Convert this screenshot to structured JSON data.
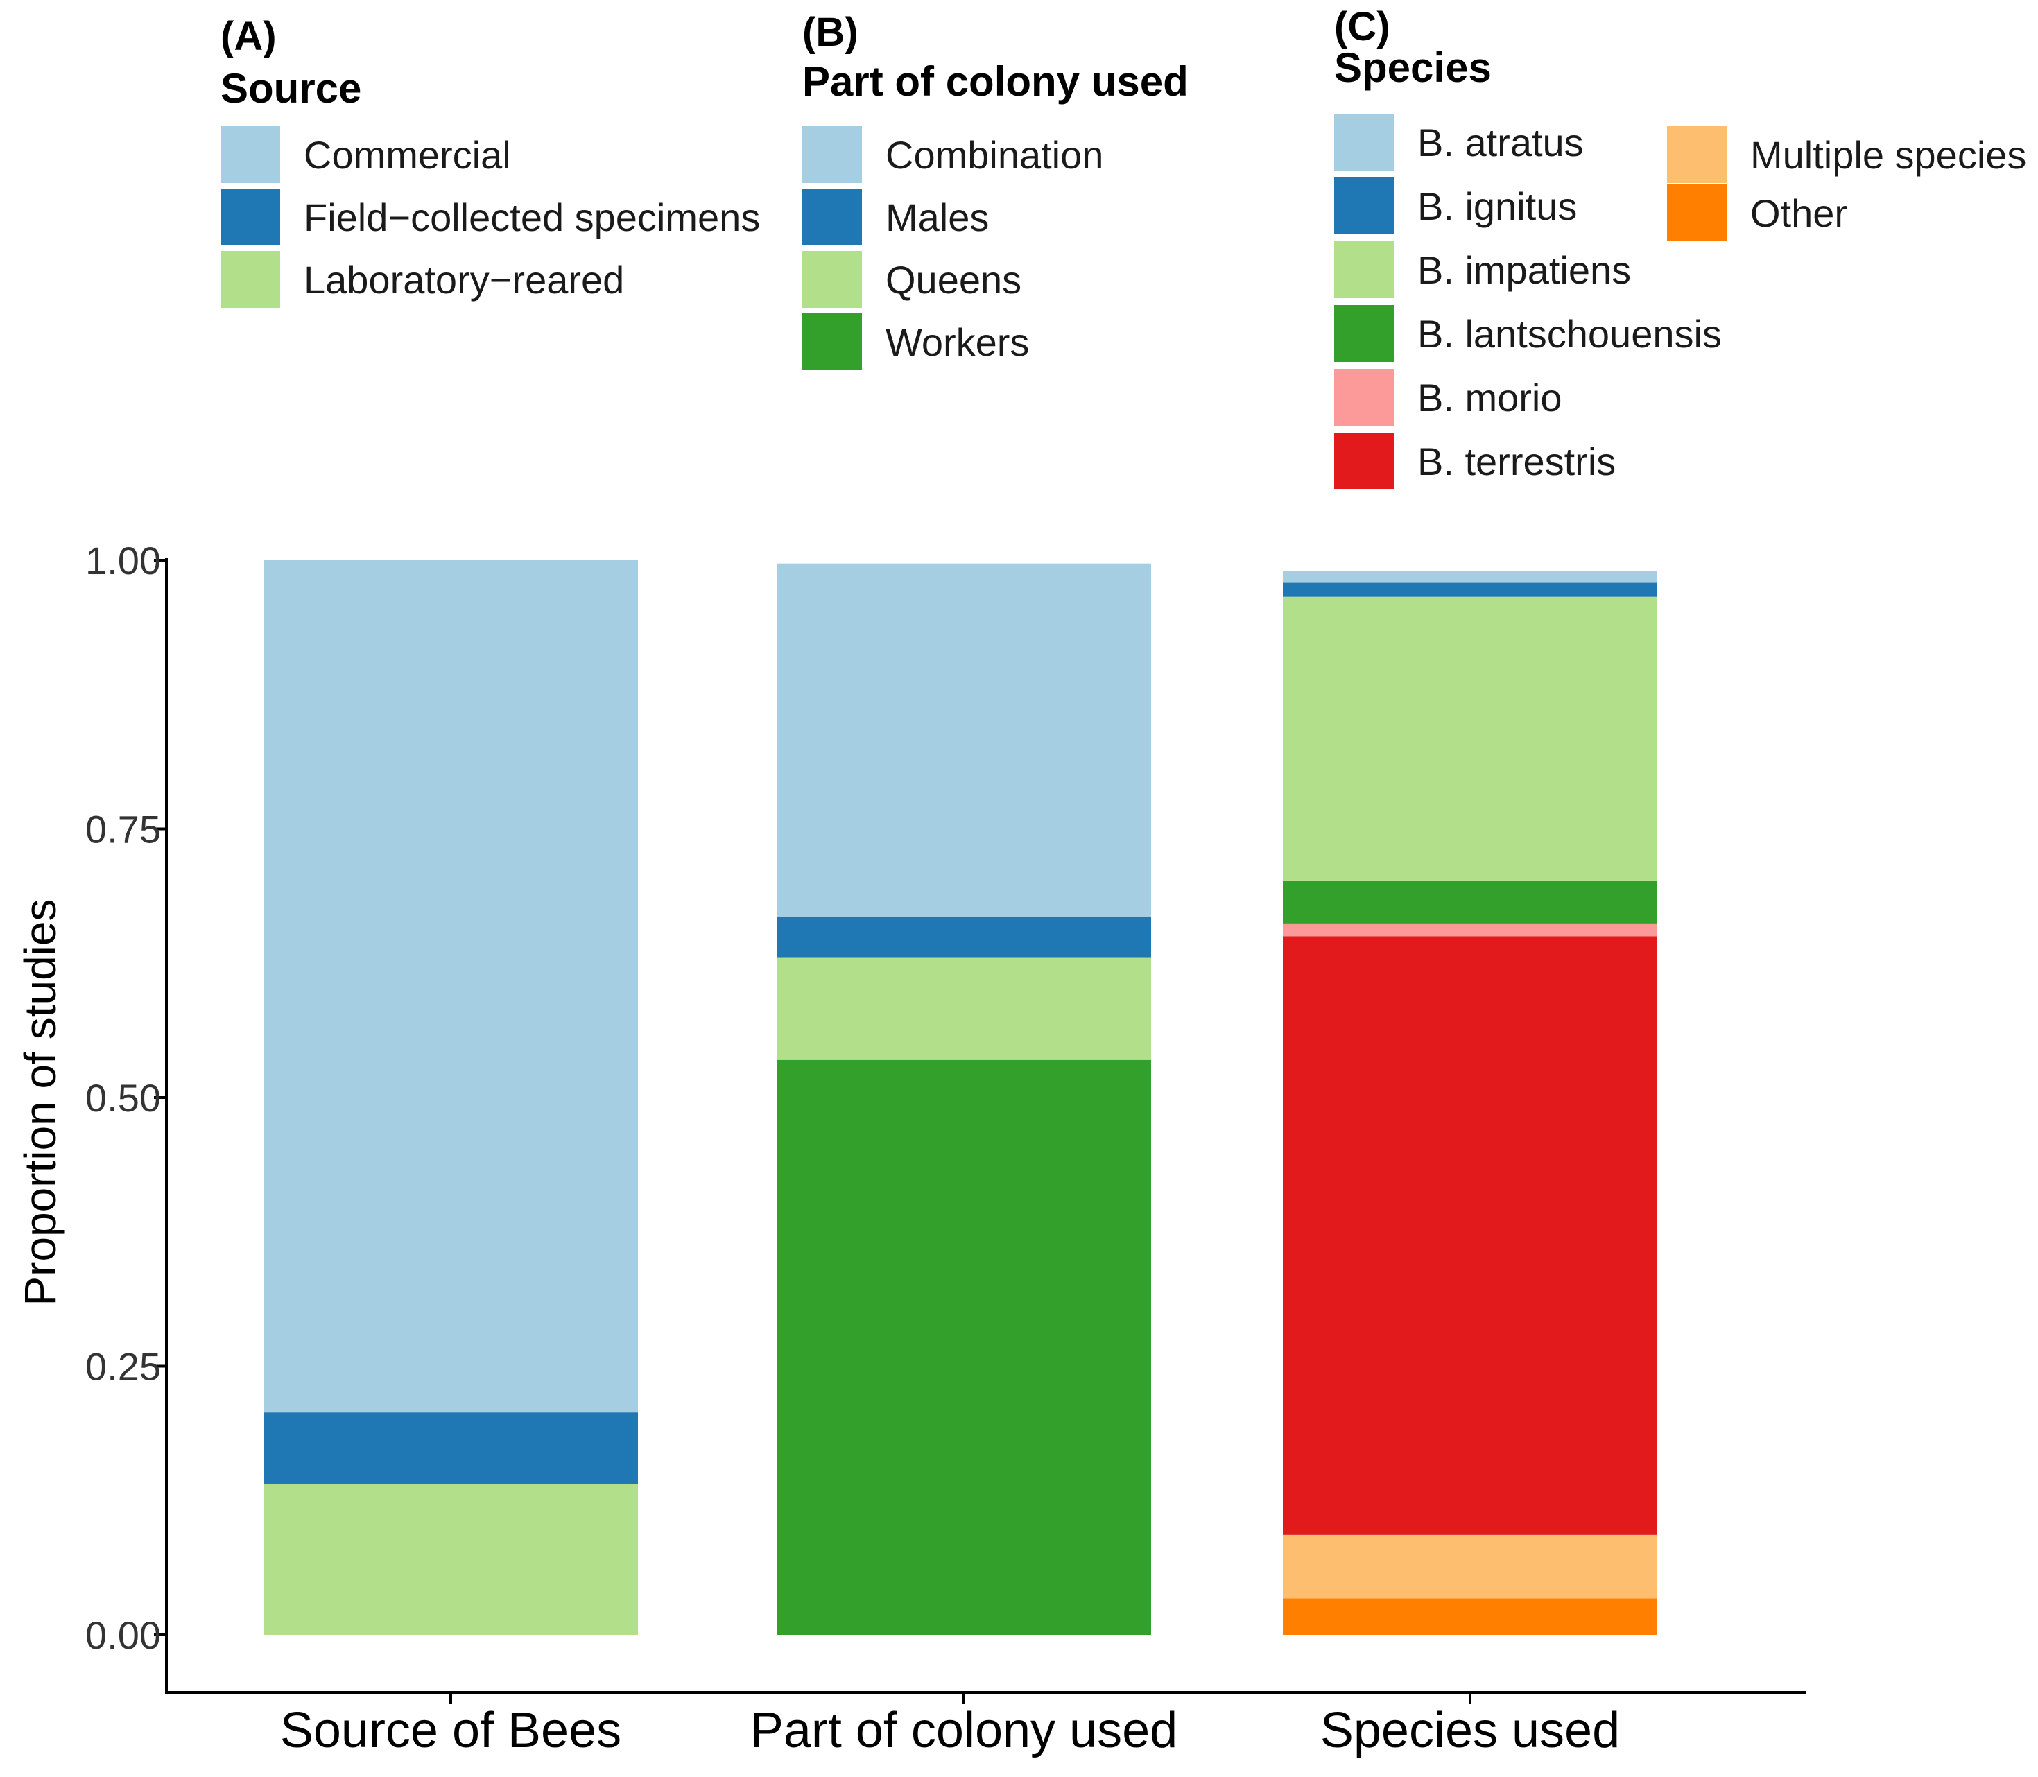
{
  "chart_data": {
    "type": "bar",
    "stacked": true,
    "ylabel": "Proportion of studies",
    "xlabel": "",
    "ylim": [
      0,
      1
    ],
    "yticks": [
      0.0,
      0.25,
      0.5,
      0.75,
      1.0
    ],
    "ytick_labels": [
      "0.00",
      "0.25",
      "0.50",
      "0.75",
      "1.00"
    ],
    "categories": [
      "Source of Bees",
      "Part of colony used",
      "Species used"
    ],
    "stacks": [
      {
        "category": "Source of Bees",
        "segments": [
          {
            "label": "Laboratory−reared",
            "value": 0.14,
            "color": "#b2df8a"
          },
          {
            "label": "Field−collected specimens",
            "value": 0.067,
            "color": "#1f78b4"
          },
          {
            "label": "Commercial",
            "value": 0.793,
            "color": "#a6cee3"
          }
        ]
      },
      {
        "category": "Part of colony used",
        "segments": [
          {
            "label": "Workers",
            "value": 0.535,
            "color": "#33a02c"
          },
          {
            "label": "Queens",
            "value": 0.095,
            "color": "#b2df8a"
          },
          {
            "label": "Males",
            "value": 0.038,
            "color": "#1f78b4"
          },
          {
            "label": "Combination",
            "value": 0.329,
            "color": "#a6cee3"
          }
        ]
      },
      {
        "category": "Species used",
        "segments": [
          {
            "label": "Other",
            "value": 0.034,
            "color": "#ff7f00"
          },
          {
            "label": "Multiple species",
            "value": 0.059,
            "color": "#fdbf6f"
          },
          {
            "label": "B. terrestris",
            "value": 0.557,
            "color": "#e31a1c"
          },
          {
            "label": "B. morio",
            "value": 0.012,
            "color": "#fb9a99"
          },
          {
            "label": "B. lantschouensis",
            "value": 0.04,
            "color": "#33a02c"
          },
          {
            "label": "B. impatiens",
            "value": 0.264,
            "color": "#b2df8a"
          },
          {
            "label": "B. ignitus",
            "value": 0.013,
            "color": "#1f78b4"
          },
          {
            "label": "B. atratus",
            "value": 0.011,
            "color": "#a6cee3"
          }
        ]
      }
    ],
    "legends": [
      {
        "panel": "(A)",
        "title": "Source",
        "columns": [
          [
            {
              "label": "Commercial",
              "color": "#a6cee3"
            },
            {
              "label": "Field−collected specimens",
              "color": "#1f78b4"
            },
            {
              "label": "Laboratory−reared",
              "color": "#b2df8a"
            }
          ]
        ]
      },
      {
        "panel": "(B)",
        "title": "Part of colony used",
        "columns": [
          [
            {
              "label": "Combination",
              "color": "#a6cee3"
            },
            {
              "label": "Males",
              "color": "#1f78b4"
            },
            {
              "label": "Queens",
              "color": "#b2df8a"
            },
            {
              "label": "Workers",
              "color": "#33a02c"
            }
          ]
        ]
      },
      {
        "panel": "(C)",
        "title": "Species",
        "columns": [
          [
            {
              "label": "B. atratus",
              "color": "#a6cee3"
            },
            {
              "label": "B. ignitus",
              "color": "#1f78b4"
            },
            {
              "label": "B. impatiens",
              "color": "#b2df8a"
            },
            {
              "label": "B. lantschouensis",
              "color": "#33a02c"
            },
            {
              "label": "B. morio",
              "color": "#fb9a99"
            },
            {
              "label": "B. terrestris",
              "color": "#e31a1c"
            }
          ],
          [
            {
              "label": "Multiple species",
              "color": "#fdbf6f"
            },
            {
              "label": "Other",
              "color": "#ff7f00"
            }
          ]
        ]
      }
    ]
  }
}
